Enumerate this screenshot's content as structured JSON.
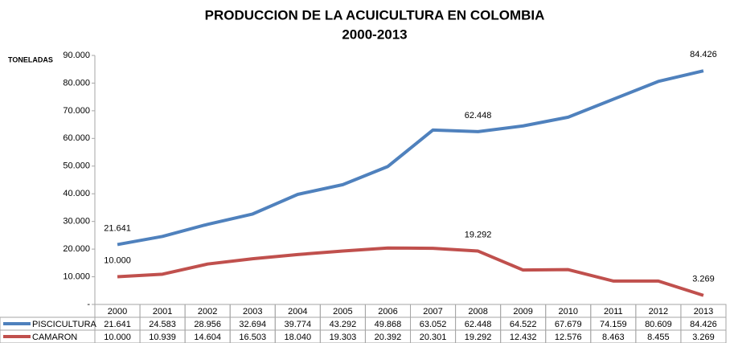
{
  "chart_data": {
    "type": "line",
    "title": "PRODUCCION DE LA ACUICULTURA EN COLOMBIA",
    "subtitle": "2000-2013",
    "y_label": "TONELADAS",
    "categories": [
      "2000",
      "2001",
      "2002",
      "2003",
      "2004",
      "2005",
      "2006",
      "2007",
      "2008",
      "2009",
      "2010",
      "2011",
      "2012",
      "2013"
    ],
    "series": [
      {
        "name": "PISCICULTURA",
        "color": "#4f81bd",
        "values": [
          21641,
          24583,
          28956,
          32694,
          39774,
          43292,
          49868,
          63052,
          62448,
          64522,
          67679,
          74159,
          80609,
          84426
        ],
        "value_labels": [
          "21.641",
          "24.583",
          "28.956",
          "32.694",
          "39.774",
          "43.292",
          "49.868",
          "63.052",
          "62.448",
          "64.522",
          "67.679",
          "74.159",
          "80.609",
          "84.426"
        ],
        "labeled_points": [
          0,
          8,
          13
        ]
      },
      {
        "name": "CAMARON",
        "color": "#c0504d",
        "values": [
          10000,
          10939,
          14604,
          16503,
          18040,
          19303,
          20392,
          20301,
          19292,
          12432,
          12576,
          8463,
          8455,
          3269
        ],
        "value_labels": [
          "10.000",
          "10.939",
          "14.604",
          "16.503",
          "18.040",
          "19.303",
          "20.392",
          "20.301",
          "19.292",
          "12.432",
          "12.576",
          "8.463",
          "8.455",
          "3.269"
        ],
        "labeled_points": [
          0,
          8,
          13
        ]
      }
    ],
    "ylim": [
      0,
      90000
    ],
    "yticks": [
      {
        "value": 0,
        "label": "-"
      },
      {
        "value": 10000,
        "label": "10.000"
      },
      {
        "value": 20000,
        "label": "20.000"
      },
      {
        "value": 30000,
        "label": "30.000"
      },
      {
        "value": 40000,
        "label": "40.000"
      },
      {
        "value": 50000,
        "label": "50.000"
      },
      {
        "value": 60000,
        "label": "60.000"
      },
      {
        "value": 70000,
        "label": "70.000"
      },
      {
        "value": 80000,
        "label": "80.000"
      },
      {
        "value": 90000,
        "label": "90.000"
      }
    ],
    "grid": false,
    "data_table": true
  }
}
